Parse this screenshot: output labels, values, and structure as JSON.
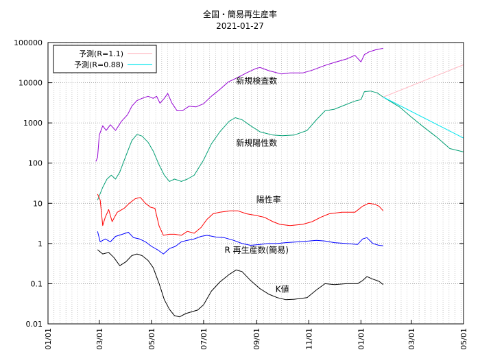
{
  "chart_data": {
    "type": "line",
    "title": "全国・簡易再生産率",
    "subtitle": "2021-01-27",
    "xlabel": "",
    "ylabel": "",
    "yscale": "log",
    "ylim": [
      0.01,
      100000
    ],
    "xlim": [
      "2020-01-01",
      "2021-05-01"
    ],
    "grid": true,
    "legend_position": "top-left",
    "x_ticks": [
      {
        "date": "2020-01-01",
        "label": "01/01"
      },
      {
        "date": "2020-03-01",
        "label": "03/01"
      },
      {
        "date": "2020-05-01",
        "label": "05/01"
      },
      {
        "date": "2020-07-01",
        "label": "07/01"
      },
      {
        "date": "2020-09-01",
        "label": "09/01"
      },
      {
        "date": "2020-11-01",
        "label": "11/01"
      },
      {
        "date": "2021-01-01",
        "label": "01/01"
      },
      {
        "date": "2021-03-01",
        "label": "03/01"
      },
      {
        "date": "2021-05-01",
        "label": "05/01"
      }
    ],
    "y_ticks": [
      {
        "value": 0.01,
        "label": "0.01"
      },
      {
        "value": 0.1,
        "label": "0.1"
      },
      {
        "value": 1,
        "label": "1"
      },
      {
        "value": 10,
        "label": "10"
      },
      {
        "value": 100,
        "label": "100"
      },
      {
        "value": 1000,
        "label": "1000"
      },
      {
        "value": 10000,
        "label": "10000"
      },
      {
        "value": 100000,
        "label": "100000"
      }
    ],
    "annotations": [
      {
        "text": "新規検査数",
        "date": "2020-09-01",
        "value": 9500
      },
      {
        "text": "新規陽性数",
        "date": "2020-09-01",
        "value": 270
      },
      {
        "text": "陽性率",
        "date": "2020-09-15",
        "value": 10.5
      },
      {
        "text": "R  再生産数(簡易)",
        "date": "2020-09-01",
        "value": 0.58
      },
      {
        "text": "K値",
        "date": "2020-10-01",
        "value": 0.062
      }
    ],
    "series": [
      {
        "name": "",
        "label_ref": "新規検査数",
        "color": "#9400d3",
        "points": [
          [
            "2020-02-26",
            110
          ],
          [
            "2020-02-28",
            140
          ],
          [
            "2020-03-01",
            500
          ],
          [
            "2020-03-05",
            850
          ],
          [
            "2020-03-09",
            650
          ],
          [
            "2020-03-14",
            900
          ],
          [
            "2020-03-20",
            650
          ],
          [
            "2020-03-27",
            1100
          ],
          [
            "2020-04-03",
            1600
          ],
          [
            "2020-04-08",
            2600
          ],
          [
            "2020-04-14",
            3600
          ],
          [
            "2020-04-20",
            4100
          ],
          [
            "2020-04-27",
            4600
          ],
          [
            "2020-05-03",
            4100
          ],
          [
            "2020-05-07",
            4600
          ],
          [
            "2020-05-11",
            3100
          ],
          [
            "2020-05-16",
            4100
          ],
          [
            "2020-05-20",
            5400
          ],
          [
            "2020-05-25",
            3100
          ],
          [
            "2020-05-31",
            2000
          ],
          [
            "2020-06-06",
            2000
          ],
          [
            "2020-06-14",
            2600
          ],
          [
            "2020-06-22",
            2500
          ],
          [
            "2020-07-01",
            3000
          ],
          [
            "2020-07-10",
            4600
          ],
          [
            "2020-07-20",
            6800
          ],
          [
            "2020-07-30",
            10500
          ],
          [
            "2020-08-10",
            13500
          ],
          [
            "2020-08-20",
            17500
          ],
          [
            "2020-08-31",
            22500
          ],
          [
            "2020-09-05",
            24000
          ],
          [
            "2020-09-15",
            20000
          ],
          [
            "2020-09-30",
            16500
          ],
          [
            "2020-10-10",
            17500
          ],
          [
            "2020-10-25",
            17500
          ],
          [
            "2020-11-05",
            20500
          ],
          [
            "2020-11-20",
            27000
          ],
          [
            "2020-12-01",
            32000
          ],
          [
            "2020-12-15",
            39000
          ],
          [
            "2020-12-25",
            48000
          ],
          [
            "2021-01-01",
            33000
          ],
          [
            "2021-01-05",
            50000
          ],
          [
            "2021-01-10",
            58000
          ],
          [
            "2021-01-18",
            66000
          ],
          [
            "2021-01-27",
            72000
          ]
        ]
      },
      {
        "name": "",
        "label_ref": "新規陽性数",
        "color": "#009e73",
        "points": [
          [
            "2020-02-28",
            12
          ],
          [
            "2020-03-05",
            25
          ],
          [
            "2020-03-10",
            40
          ],
          [
            "2020-03-15",
            50
          ],
          [
            "2020-03-20",
            40
          ],
          [
            "2020-03-25",
            60
          ],
          [
            "2020-04-01",
            150
          ],
          [
            "2020-04-08",
            360
          ],
          [
            "2020-04-14",
            520
          ],
          [
            "2020-04-20",
            470
          ],
          [
            "2020-04-27",
            330
          ],
          [
            "2020-05-03",
            200
          ],
          [
            "2020-05-10",
            90
          ],
          [
            "2020-05-16",
            50
          ],
          [
            "2020-05-22",
            35
          ],
          [
            "2020-05-28",
            40
          ],
          [
            "2020-06-05",
            35
          ],
          [
            "2020-06-12",
            40
          ],
          [
            "2020-06-20",
            50
          ],
          [
            "2020-07-01",
            120
          ],
          [
            "2020-07-10",
            300
          ],
          [
            "2020-07-20",
            600
          ],
          [
            "2020-07-31",
            1100
          ],
          [
            "2020-08-07",
            1350
          ],
          [
            "2020-08-15",
            1200
          ],
          [
            "2020-08-25",
            850
          ],
          [
            "2020-09-05",
            600
          ],
          [
            "2020-09-20",
            500
          ],
          [
            "2020-10-01",
            480
          ],
          [
            "2020-10-15",
            500
          ],
          [
            "2020-10-30",
            650
          ],
          [
            "2020-11-10",
            1200
          ],
          [
            "2020-11-20",
            2000
          ],
          [
            "2020-12-01",
            2200
          ],
          [
            "2020-12-15",
            2900
          ],
          [
            "2020-12-25",
            3500
          ],
          [
            "2021-01-01",
            3800
          ],
          [
            "2021-01-05",
            6000
          ],
          [
            "2021-01-12",
            6200
          ],
          [
            "2021-01-20",
            5600
          ],
          [
            "2021-01-27",
            4400
          ],
          [
            "2021-02-15",
            2500
          ],
          [
            "2021-03-01",
            1400
          ],
          [
            "2021-03-15",
            800
          ],
          [
            "2021-04-01",
            420
          ],
          [
            "2021-04-15",
            230
          ],
          [
            "2021-05-01",
            190
          ]
        ]
      },
      {
        "name": "予測(R=1.1)",
        "label_ref": "",
        "color": "#ffb6c1",
        "points": [
          [
            "2021-01-27",
            4400
          ],
          [
            "2021-05-01",
            28000
          ]
        ]
      },
      {
        "name": "予測(R=0.88)",
        "label_ref": "",
        "color": "#00e5ee",
        "points": [
          [
            "2021-01-27",
            4400
          ],
          [
            "2021-05-01",
            420
          ]
        ]
      },
      {
        "name": "",
        "label_ref": "陽性率",
        "color": "#ff0000",
        "points": [
          [
            "2020-02-28",
            17
          ],
          [
            "2020-03-02",
            12
          ],
          [
            "2020-03-05",
            2.8
          ],
          [
            "2020-03-08",
            4.5
          ],
          [
            "2020-03-12",
            7
          ],
          [
            "2020-03-16",
            3.5
          ],
          [
            "2020-03-22",
            6
          ],
          [
            "2020-03-30",
            7.5
          ],
          [
            "2020-04-05",
            10
          ],
          [
            "2020-04-12",
            13
          ],
          [
            "2020-04-18",
            14
          ],
          [
            "2020-04-24",
            10
          ],
          [
            "2020-04-30",
            8
          ],
          [
            "2020-05-05",
            7.5
          ],
          [
            "2020-05-10",
            2.7
          ],
          [
            "2020-05-15",
            1.6
          ],
          [
            "2020-05-22",
            1.7
          ],
          [
            "2020-05-28",
            1.7
          ],
          [
            "2020-06-05",
            1.6
          ],
          [
            "2020-06-12",
            2
          ],
          [
            "2020-06-20",
            1.8
          ],
          [
            "2020-06-28",
            2.5
          ],
          [
            "2020-07-05",
            4
          ],
          [
            "2020-07-12",
            5.5
          ],
          [
            "2020-07-20",
            6
          ],
          [
            "2020-08-01",
            6.5
          ],
          [
            "2020-08-10",
            6.5
          ],
          [
            "2020-08-20",
            5.5
          ],
          [
            "2020-08-31",
            5
          ],
          [
            "2020-09-10",
            4.5
          ],
          [
            "2020-09-20",
            3.5
          ],
          [
            "2020-09-28",
            3
          ],
          [
            "2020-10-10",
            2.8
          ],
          [
            "2020-10-25",
            3
          ],
          [
            "2020-11-05",
            3.5
          ],
          [
            "2020-11-15",
            4.5
          ],
          [
            "2020-11-25",
            5.5
          ],
          [
            "2020-12-10",
            6
          ],
          [
            "2020-12-25",
            6
          ],
          [
            "2021-01-03",
            8.5
          ],
          [
            "2021-01-10",
            10
          ],
          [
            "2021-01-17",
            9.5
          ],
          [
            "2021-01-22",
            8.5
          ],
          [
            "2021-01-27",
            6.5
          ]
        ]
      },
      {
        "name": "",
        "label_ref": "R  再生産数(簡易)",
        "color": "#0000ff",
        "points": [
          [
            "2020-02-28",
            2
          ],
          [
            "2020-03-02",
            1.1
          ],
          [
            "2020-03-08",
            1.3
          ],
          [
            "2020-03-14",
            1.1
          ],
          [
            "2020-03-20",
            1.5
          ],
          [
            "2020-03-28",
            1.7
          ],
          [
            "2020-04-04",
            1.9
          ],
          [
            "2020-04-10",
            1.4
          ],
          [
            "2020-04-17",
            1.3
          ],
          [
            "2020-04-24",
            1.1
          ],
          [
            "2020-05-01",
            0.85
          ],
          [
            "2020-05-08",
            0.7
          ],
          [
            "2020-05-15",
            0.55
          ],
          [
            "2020-05-22",
            0.75
          ],
          [
            "2020-05-29",
            0.85
          ],
          [
            "2020-06-05",
            1.1
          ],
          [
            "2020-06-12",
            1.2
          ],
          [
            "2020-06-20",
            1.3
          ],
          [
            "2020-06-28",
            1.5
          ],
          [
            "2020-07-05",
            1.6
          ],
          [
            "2020-07-15",
            1.45
          ],
          [
            "2020-07-25",
            1.4
          ],
          [
            "2020-08-05",
            1.2
          ],
          [
            "2020-08-15",
            1.0
          ],
          [
            "2020-08-25",
            0.9
          ],
          [
            "2020-09-05",
            0.95
          ],
          [
            "2020-09-15",
            1.0
          ],
          [
            "2020-09-25",
            1.0
          ],
          [
            "2020-10-05",
            1.05
          ],
          [
            "2020-10-20",
            1.1
          ],
          [
            "2020-11-01",
            1.15
          ],
          [
            "2020-11-10",
            1.2
          ],
          [
            "2020-11-20",
            1.15
          ],
          [
            "2020-12-01",
            1.05
          ],
          [
            "2020-12-15",
            1.0
          ],
          [
            "2020-12-28",
            0.95
          ],
          [
            "2021-01-03",
            1.3
          ],
          [
            "2021-01-08",
            1.4
          ],
          [
            "2021-01-15",
            1.0
          ],
          [
            "2021-01-22",
            0.9
          ],
          [
            "2021-01-27",
            0.88
          ]
        ]
      },
      {
        "name": "",
        "label_ref": "K値",
        "color": "#000000",
        "points": [
          [
            "2020-02-28",
            0.7
          ],
          [
            "2020-03-05",
            0.55
          ],
          [
            "2020-03-12",
            0.6
          ],
          [
            "2020-03-18",
            0.45
          ],
          [
            "2020-03-25",
            0.28
          ],
          [
            "2020-04-01",
            0.35
          ],
          [
            "2020-04-08",
            0.5
          ],
          [
            "2020-04-14",
            0.55
          ],
          [
            "2020-04-20",
            0.5
          ],
          [
            "2020-04-27",
            0.38
          ],
          [
            "2020-05-03",
            0.25
          ],
          [
            "2020-05-10",
            0.1
          ],
          [
            "2020-05-16",
            0.04
          ],
          [
            "2020-05-22",
            0.023
          ],
          [
            "2020-05-28",
            0.016
          ],
          [
            "2020-06-03",
            0.015
          ],
          [
            "2020-06-10",
            0.018
          ],
          [
            "2020-06-17",
            0.02
          ],
          [
            "2020-06-24",
            0.022
          ],
          [
            "2020-07-01",
            0.03
          ],
          [
            "2020-07-10",
            0.065
          ],
          [
            "2020-07-20",
            0.11
          ],
          [
            "2020-07-31",
            0.17
          ],
          [
            "2020-08-08",
            0.22
          ],
          [
            "2020-08-15",
            0.2
          ],
          [
            "2020-08-25",
            0.12
          ],
          [
            "2020-09-05",
            0.075
          ],
          [
            "2020-09-15",
            0.055
          ],
          [
            "2020-09-25",
            0.045
          ],
          [
            "2020-10-05",
            0.04
          ],
          [
            "2020-10-15",
            0.041
          ],
          [
            "2020-10-30",
            0.045
          ],
          [
            "2020-11-10",
            0.07
          ],
          [
            "2020-11-20",
            0.1
          ],
          [
            "2020-12-01",
            0.095
          ],
          [
            "2020-12-15",
            0.1
          ],
          [
            "2020-12-28",
            0.1
          ],
          [
            "2021-01-03",
            0.12
          ],
          [
            "2021-01-08",
            0.15
          ],
          [
            "2021-01-15",
            0.13
          ],
          [
            "2021-01-22",
            0.115
          ],
          [
            "2021-01-27",
            0.095
          ]
        ]
      }
    ]
  }
}
